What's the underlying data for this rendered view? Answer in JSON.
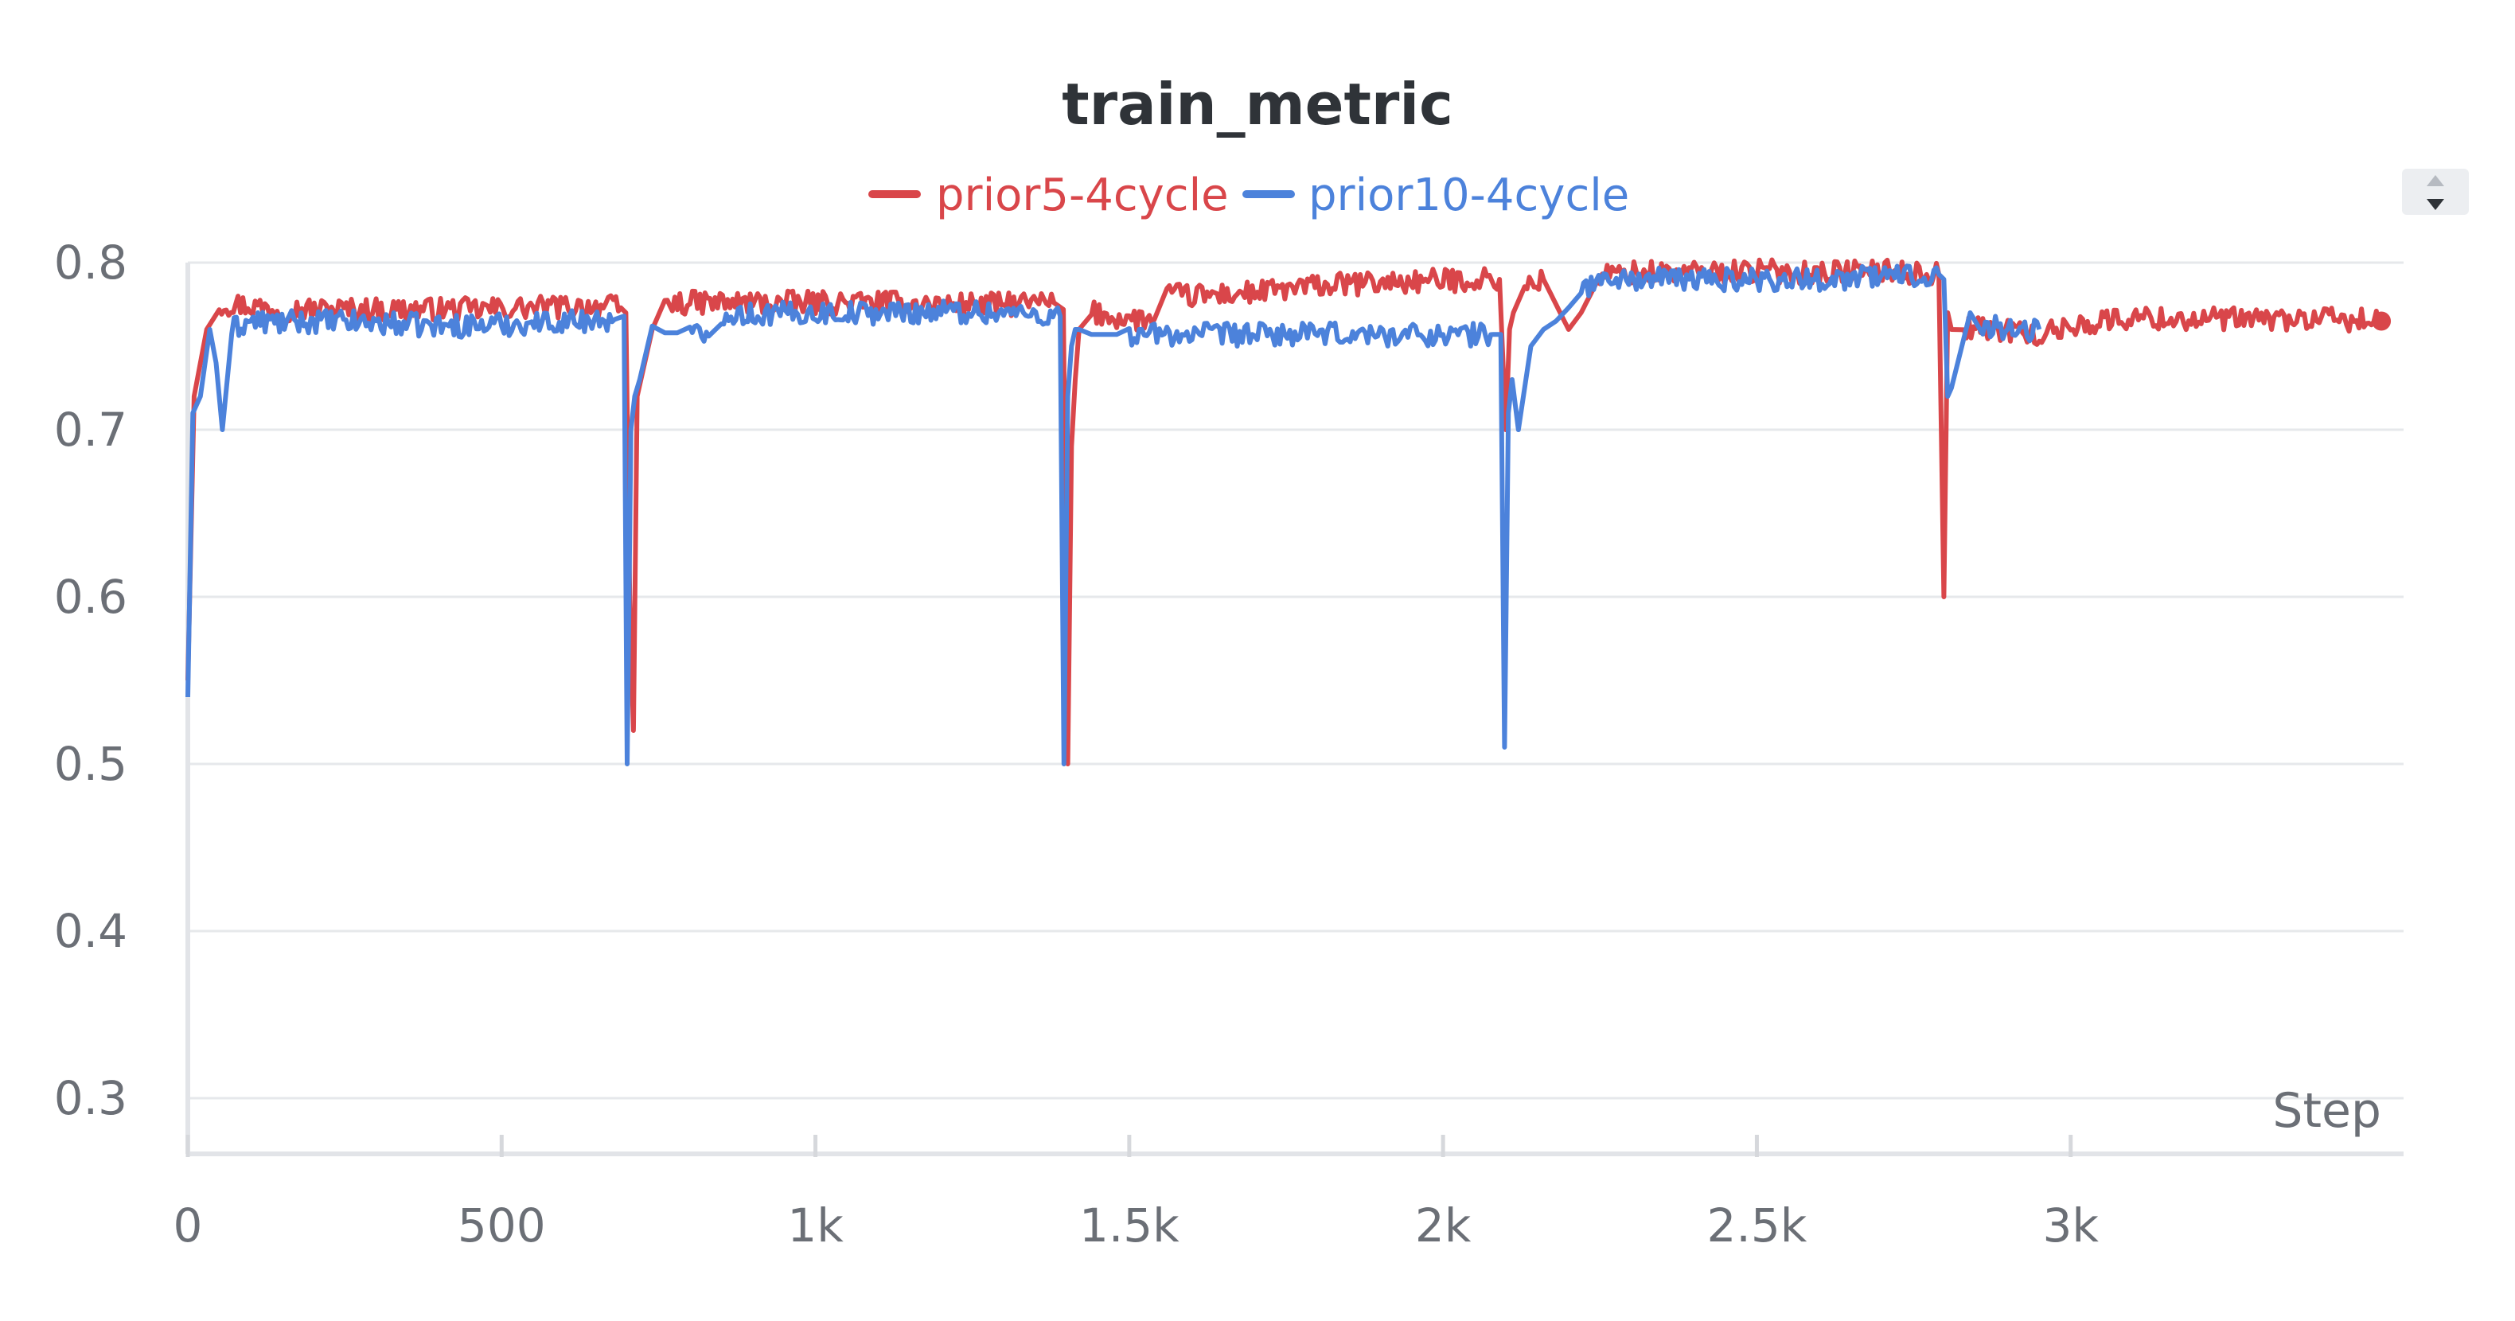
{
  "chart_data": {
    "type": "line",
    "title": "train_metric",
    "xlabel": "Step",
    "ylabel": "",
    "xlim": [
      0,
      3500
    ],
    "ylim": [
      0.3,
      0.8
    ],
    "x_ticks": [
      {
        "value": 0,
        "label": "0"
      },
      {
        "value": 500,
        "label": "500"
      },
      {
        "value": 1000,
        "label": "1k"
      },
      {
        "value": 1500,
        "label": "1.5k"
      },
      {
        "value": 2000,
        "label": "2k"
      },
      {
        "value": 2500,
        "label": "2.5k"
      },
      {
        "value": 3000,
        "label": "3k"
      }
    ],
    "y_ticks": [
      {
        "value": 0.3,
        "label": "0.3"
      },
      {
        "value": 0.4,
        "label": "0.4"
      },
      {
        "value": 0.5,
        "label": "0.5"
      },
      {
        "value": 0.6,
        "label": "0.6"
      },
      {
        "value": 0.7,
        "label": "0.7"
      },
      {
        "value": 0.8,
        "label": "0.8"
      }
    ],
    "grid": true,
    "legend_position": "top-center",
    "series": [
      {
        "name": "prior5-4cycle",
        "color": "#d9464a",
        "x": [
          0,
          10,
          30,
          50,
          80,
          150,
          300,
          450,
          550,
          650,
          690,
          698,
          704,
          710,
          716,
          722,
          740,
          760,
          800,
          900,
          1000,
          1100,
          1200,
          1300,
          1380,
          1395,
          1402,
          1408,
          1414,
          1420,
          1440,
          1500,
          1540,
          1560,
          1600,
          1700,
          1800,
          1900,
          1980,
          2050,
          2090,
          2100,
          2106,
          2112,
          2130,
          2160,
          2200,
          2220,
          2250,
          2300,
          2400,
          2500,
          2600,
          2700,
          2790,
          2798,
          2804,
          2810,
          2830,
          2860,
          2900,
          2950,
          3000,
          3050,
          3100,
          3200,
          3300,
          3400,
          3495
        ],
        "y": [
          0.55,
          0.72,
          0.76,
          0.775,
          0.775,
          0.772,
          0.772,
          0.772,
          0.773,
          0.774,
          0.773,
          0.77,
          0.6,
          0.52,
          0.72,
          0.73,
          0.76,
          0.775,
          0.776,
          0.776,
          0.776,
          0.776,
          0.775,
          0.775,
          0.776,
          0.772,
          0.5,
          0.69,
          0.73,
          0.76,
          0.77,
          0.766,
          0.766,
          0.781,
          0.78,
          0.782,
          0.786,
          0.788,
          0.789,
          0.79,
          0.79,
          0.7,
          0.76,
          0.77,
          0.785,
          0.79,
          0.76,
          0.77,
          0.792,
          0.794,
          0.794,
          0.795,
          0.794,
          0.795,
          0.793,
          0.6,
          0.77,
          0.76,
          0.762,
          0.76,
          0.76,
          0.756,
          0.762,
          0.765,
          0.767,
          0.766,
          0.766,
          0.766,
          0.765
        ]
      },
      {
        "name": "prior10-4cycle",
        "color": "#4c82db",
        "x": [
          0,
          8,
          20,
          35,
          45,
          55,
          70,
          100,
          150,
          200,
          300,
          400,
          500,
          600,
          680,
          695,
          700,
          706,
          712,
          720,
          740,
          760,
          780,
          800,
          830,
          850,
          900,
          1000,
          1100,
          1200,
          1300,
          1390,
          1396,
          1402,
          1408,
          1414,
          1420,
          1440,
          1460,
          1480,
          1500,
          1600,
          1700,
          1800,
          1900,
          2000,
          2080,
          2092,
          2098,
          2104,
          2110,
          2120,
          2140,
          2160,
          2180,
          2200,
          2220,
          2260,
          2300,
          2400,
          2500,
          2600,
          2700,
          2790,
          2798,
          2804,
          2810,
          2820,
          2840,
          2860,
          2900,
          2950
        ],
        "y": [
          0.54,
          0.71,
          0.72,
          0.76,
          0.74,
          0.7,
          0.76,
          0.765,
          0.764,
          0.765,
          0.764,
          0.762,
          0.763,
          0.765,
          0.766,
          0.768,
          0.5,
          0.7,
          0.72,
          0.73,
          0.762,
          0.758,
          0.758,
          0.757,
          0.756,
          0.77,
          0.769,
          0.77,
          0.77,
          0.771,
          0.77,
          0.768,
          0.5,
          0.72,
          0.75,
          0.76,
          0.76,
          0.757,
          0.757,
          0.757,
          0.757,
          0.757,
          0.757,
          0.757,
          0.757,
          0.757,
          0.757,
          0.757,
          0.51,
          0.71,
          0.73,
          0.7,
          0.75,
          0.76,
          0.765,
          0.773,
          0.785,
          0.79,
          0.79,
          0.79,
          0.79,
          0.79,
          0.792,
          0.793,
          0.79,
          0.72,
          0.725,
          0.74,
          0.77,
          0.763,
          0.76,
          0.76
        ]
      }
    ]
  },
  "ui": {
    "scroll_up_icon": "triangle-up-icon",
    "scroll_down_icon": "triangle-down-icon"
  }
}
